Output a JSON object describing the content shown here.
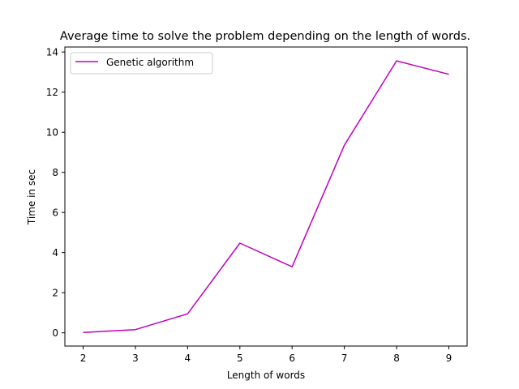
{
  "chart_data": {
    "type": "line",
    "title": "Average time to solve the problem depending on the length of words.",
    "xlabel": "Length of words",
    "ylabel": "Time in sec",
    "x": [
      2,
      3,
      4,
      5,
      6,
      7,
      8,
      9
    ],
    "series": [
      {
        "name": "Genetic algorithm",
        "color": "#bf00bf",
        "values": [
          0.02,
          0.16,
          0.95,
          4.47,
          3.29,
          9.35,
          13.56,
          12.89
        ]
      }
    ],
    "xlim": [
      1.65,
      9.35
    ],
    "ylim": [
      -0.66,
      14.25
    ],
    "xticks": [
      2,
      3,
      4,
      5,
      6,
      7,
      8,
      9
    ],
    "yticks": [
      0,
      2,
      4,
      6,
      8,
      10,
      12,
      14
    ],
    "grid": false,
    "legend_position": "upper-left"
  }
}
